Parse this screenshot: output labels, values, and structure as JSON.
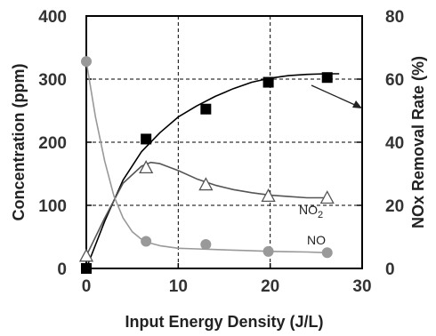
{
  "chart_data": {
    "type": "line",
    "title": "",
    "xlabel": "Input Energy Density (J/L)",
    "ylabel": "Concentration (ppm)",
    "y2label": "NOx Removal Rate (%)",
    "xlim": [
      0,
      30
    ],
    "ylim": [
      0,
      400
    ],
    "y2lim": [
      0,
      80
    ],
    "xticks": [
      "0",
      "10",
      "20",
      "30"
    ],
    "yticks": [
      "0",
      "100",
      "200",
      "300",
      "400"
    ],
    "y2ticks": [
      "0",
      "20",
      "40",
      "60",
      "80"
    ],
    "grid": "dashed at x=10, 20 and y=100, 200, 300",
    "colors": {
      "no": "#999999",
      "no2": "#555555",
      "nox": "#000000",
      "grid": "#000000"
    },
    "series": [
      {
        "key": "nox",
        "axis": "right",
        "marker": "filled-square",
        "x": [
          0,
          6.5,
          13,
          19.8,
          26.2
        ],
        "values": [
          0,
          41,
          50.5,
          59,
          60.5
        ],
        "curve_x": [
          0,
          2,
          4,
          6,
          8,
          10,
          12,
          14,
          16,
          18,
          20,
          22,
          24,
          26,
          27.5
        ],
        "curve": [
          0,
          15,
          28,
          37,
          43,
          48,
          51.5,
          54.5,
          57,
          59,
          60.3,
          61.1,
          61.5,
          61.7,
          61.7
        ]
      },
      {
        "key": "no2",
        "name": "NO2",
        "axis": "left",
        "marker": "open-triangle",
        "x": [
          0,
          6.5,
          13,
          19.8,
          26.2
        ],
        "values": [
          20,
          160,
          133,
          115,
          112
        ],
        "curve_x": [
          0,
          2,
          4,
          6,
          7,
          8,
          10,
          12,
          14,
          16,
          18,
          20,
          22,
          24,
          26.2
        ],
        "curve": [
          20,
          80,
          135,
          162,
          168,
          166,
          155,
          142,
          132,
          125,
          120,
          116,
          114,
          112,
          112
        ]
      },
      {
        "key": "no",
        "name": "NO",
        "axis": "left",
        "marker": "filled-circle",
        "x": [
          0,
          6.5,
          13,
          19.8,
          26.2
        ],
        "values": [
          328,
          43,
          38,
          27,
          25
        ],
        "curve_x": [
          0,
          1,
          2,
          3,
          4,
          5,
          6,
          7,
          8,
          10,
          12,
          14,
          16,
          18,
          20,
          22,
          24,
          26.2
        ],
        "curve": [
          328,
          240,
          170,
          115,
          80,
          58,
          46,
          40,
          36,
          32,
          31,
          30,
          29,
          28,
          27,
          26.5,
          26,
          25
        ]
      }
    ],
    "annotations": [
      {
        "text": "NO",
        "sub": "2",
        "series": "no2"
      },
      {
        "text": "NO",
        "sub": "",
        "series": "no"
      }
    ]
  }
}
